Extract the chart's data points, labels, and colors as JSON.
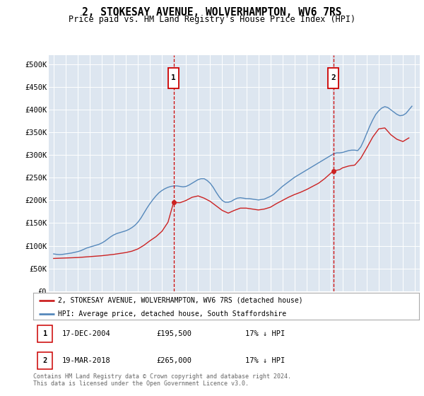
{
  "title": "2, STOKESAY AVENUE, WOLVERHAMPTON, WV6 7RS",
  "subtitle": "Price paid vs. HM Land Registry's House Price Index (HPI)",
  "bg_color": "#dde6f0",
  "yticks": [
    0,
    50000,
    100000,
    150000,
    200000,
    250000,
    300000,
    350000,
    400000,
    450000,
    500000
  ],
  "ytick_labels": [
    "£0",
    "£50K",
    "£100K",
    "£150K",
    "£200K",
    "£250K",
    "£300K",
    "£350K",
    "£400K",
    "£450K",
    "£500K"
  ],
  "hpi_color": "#5588bb",
  "price_color": "#cc2222",
  "marker1_price": 195500,
  "marker1_year": 2004.96,
  "marker2_price": 265000,
  "marker2_year": 2018.22,
  "legend_line1": "2, STOKESAY AVENUE, WOLVERHAMPTON, WV6 7RS (detached house)",
  "legend_line2": "HPI: Average price, detached house, South Staffordshire",
  "table_row1": [
    "1",
    "17-DEC-2004",
    "£195,500",
    "17% ↓ HPI"
  ],
  "table_row2": [
    "2",
    "19-MAR-2018",
    "£265,000",
    "17% ↓ HPI"
  ],
  "footer": "Contains HM Land Registry data © Crown copyright and database right 2024.\nThis data is licensed under the Open Government Licence v3.0.",
  "hpi_data": {
    "years": [
      1995.0,
      1995.25,
      1995.5,
      1995.75,
      1996.0,
      1996.25,
      1996.5,
      1996.75,
      1997.0,
      1997.25,
      1997.5,
      1997.75,
      1998.0,
      1998.25,
      1998.5,
      1998.75,
      1999.0,
      1999.25,
      1999.5,
      1999.75,
      2000.0,
      2000.25,
      2000.5,
      2000.75,
      2001.0,
      2001.25,
      2001.5,
      2001.75,
      2002.0,
      2002.25,
      2002.5,
      2002.75,
      2003.0,
      2003.25,
      2003.5,
      2003.75,
      2004.0,
      2004.25,
      2004.5,
      2004.75,
      2005.0,
      2005.25,
      2005.5,
      2005.75,
      2006.0,
      2006.25,
      2006.5,
      2006.75,
      2007.0,
      2007.25,
      2007.5,
      2007.75,
      2008.0,
      2008.25,
      2008.5,
      2008.75,
      2009.0,
      2009.25,
      2009.5,
      2009.75,
      2010.0,
      2010.25,
      2010.5,
      2010.75,
      2011.0,
      2011.25,
      2011.5,
      2011.75,
      2012.0,
      2012.25,
      2012.5,
      2012.75,
      2013.0,
      2013.25,
      2013.5,
      2013.75,
      2014.0,
      2014.25,
      2014.5,
      2014.75,
      2015.0,
      2015.25,
      2015.5,
      2015.75,
      2016.0,
      2016.25,
      2016.5,
      2016.75,
      2017.0,
      2017.25,
      2017.5,
      2017.75,
      2018.0,
      2018.25,
      2018.5,
      2018.75,
      2019.0,
      2019.25,
      2019.5,
      2019.75,
      2020.0,
      2020.25,
      2020.5,
      2020.75,
      2021.0,
      2021.25,
      2021.5,
      2021.75,
      2022.0,
      2022.25,
      2022.5,
      2022.75,
      2023.0,
      2023.25,
      2023.5,
      2023.75,
      2024.0,
      2024.25,
      2024.5,
      2024.75
    ],
    "values": [
      82000,
      81000,
      80500,
      81000,
      82000,
      83000,
      84000,
      85500,
      87000,
      89000,
      92000,
      95000,
      97000,
      99000,
      101000,
      103000,
      106000,
      110000,
      115000,
      120000,
      124000,
      127000,
      129000,
      131000,
      133000,
      136000,
      140000,
      145000,
      152000,
      161000,
      172000,
      183000,
      193000,
      202000,
      210000,
      217000,
      222000,
      226000,
      229000,
      231000,
      232000,
      232000,
      231000,
      230000,
      231000,
      234000,
      238000,
      242000,
      246000,
      248000,
      248000,
      244000,
      238000,
      229000,
      218000,
      208000,
      200000,
      196000,
      196000,
      198000,
      202000,
      205000,
      206000,
      205000,
      204000,
      204000,
      203000,
      202000,
      201000,
      202000,
      203000,
      206000,
      209000,
      213000,
      219000,
      225000,
      231000,
      236000,
      241000,
      246000,
      251000,
      255000,
      259000,
      263000,
      267000,
      271000,
      275000,
      279000,
      283000,
      287000,
      291000,
      295000,
      299000,
      303000,
      305000,
      305000,
      306000,
      308000,
      310000,
      311000,
      311000,
      310000,
      318000,
      332000,
      348000,
      364000,
      378000,
      390000,
      398000,
      404000,
      407000,
      405000,
      400000,
      395000,
      390000,
      387000,
      388000,
      392000,
      400000,
      408000
    ]
  },
  "price_data": {
    "years": [
      1995.0,
      1995.5,
      1996.0,
      1996.5,
      1997.0,
      1997.5,
      1998.0,
      1998.5,
      1999.0,
      1999.5,
      2000.0,
      2000.5,
      2001.0,
      2001.5,
      2002.0,
      2002.5,
      2003.0,
      2003.5,
      2004.0,
      2004.5,
      2004.96,
      2005.5,
      2006.0,
      2006.5,
      2007.0,
      2007.5,
      2008.0,
      2008.5,
      2009.0,
      2009.5,
      2010.0,
      2010.5,
      2011.0,
      2011.5,
      2012.0,
      2012.5,
      2013.0,
      2013.5,
      2014.0,
      2014.5,
      2015.0,
      2015.5,
      2016.0,
      2016.5,
      2017.0,
      2017.5,
      2018.22,
      2018.75,
      2019.0,
      2019.5,
      2020.0,
      2020.5,
      2021.0,
      2021.5,
      2022.0,
      2022.5,
      2023.0,
      2023.5,
      2024.0,
      2024.5
    ],
    "values": [
      72000,
      72500,
      73000,
      73500,
      74000,
      75000,
      76000,
      77000,
      78000,
      79500,
      81000,
      83000,
      85000,
      88000,
      93000,
      101000,
      111000,
      120000,
      132000,
      152000,
      195500,
      195000,
      200000,
      207000,
      210000,
      205000,
      198000,
      188000,
      178000,
      172000,
      178000,
      183000,
      183000,
      181000,
      179000,
      181000,
      185000,
      193000,
      200000,
      207000,
      213000,
      218000,
      224000,
      231000,
      238000,
      248000,
      265000,
      268000,
      272000,
      276000,
      278000,
      293000,
      316000,
      340000,
      358000,
      360000,
      345000,
      335000,
      330000,
      338000
    ]
  }
}
